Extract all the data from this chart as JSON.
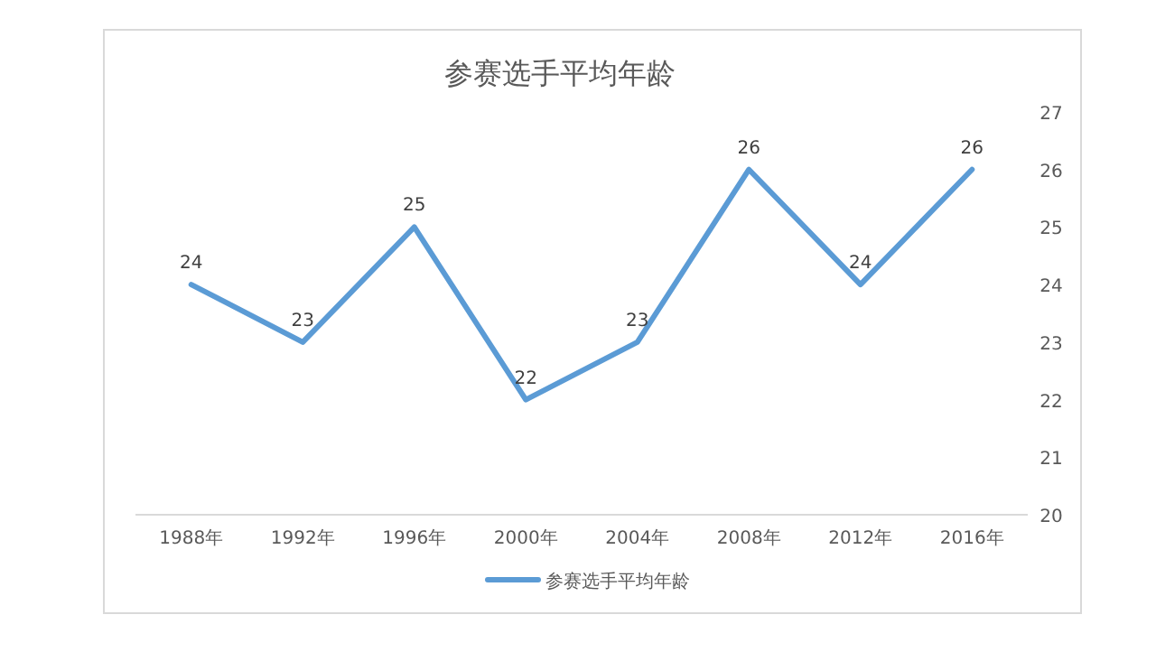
{
  "chart_data": {
    "type": "line",
    "title": "参赛选手平均年龄",
    "categories": [
      "1988年",
      "1992年",
      "1996年",
      "2000年",
      "2004年",
      "2008年",
      "2012年",
      "2016年"
    ],
    "series": [
      {
        "name": "参赛选手平均年龄",
        "color": "#5b9bd5",
        "values": [
          24,
          23,
          25,
          22,
          23,
          26,
          24,
          26
        ]
      }
    ],
    "ylim": [
      20,
      27
    ],
    "yticks": [
      20,
      21,
      22,
      23,
      24,
      25,
      26,
      27
    ],
    "data_labels": true,
    "legend": "bottom"
  }
}
